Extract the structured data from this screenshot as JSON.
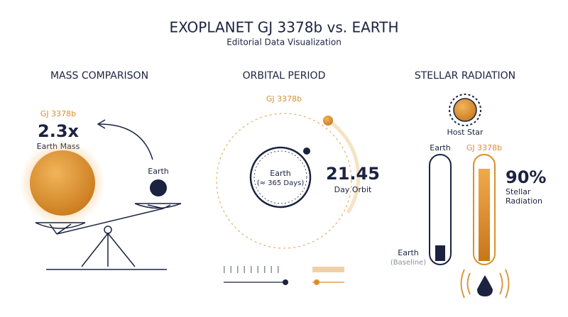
{
  "header": {
    "title": "EXOPLANET GJ 3378b vs. EARTH",
    "subtitle": "Editorial Data Visualization"
  },
  "panels": [
    {
      "title": "MASS COMPARISON",
      "planet_label": "GJ 3378b",
      "value": "2.3x",
      "value_caption": "Earth Mass",
      "earth_label": "Earth"
    },
    {
      "title": "ORBITAL PERIOD",
      "planet_label": "GJ 3378b",
      "earth_label": "Earth",
      "earth_caption": "(≈ 365 Days)",
      "value": "21.45",
      "value_caption": "Day Orbit"
    },
    {
      "title": "STELLAR RADIATION",
      "star_label": "Host Star",
      "earth_label": "Earth",
      "planet_label": "GJ 3378b",
      "value": "90%",
      "value_caption_lines": [
        "Stellar",
        "Radiation"
      ],
      "baseline_label": "Earth",
      "baseline_caption": "(Baseline)"
    }
  ]
}
